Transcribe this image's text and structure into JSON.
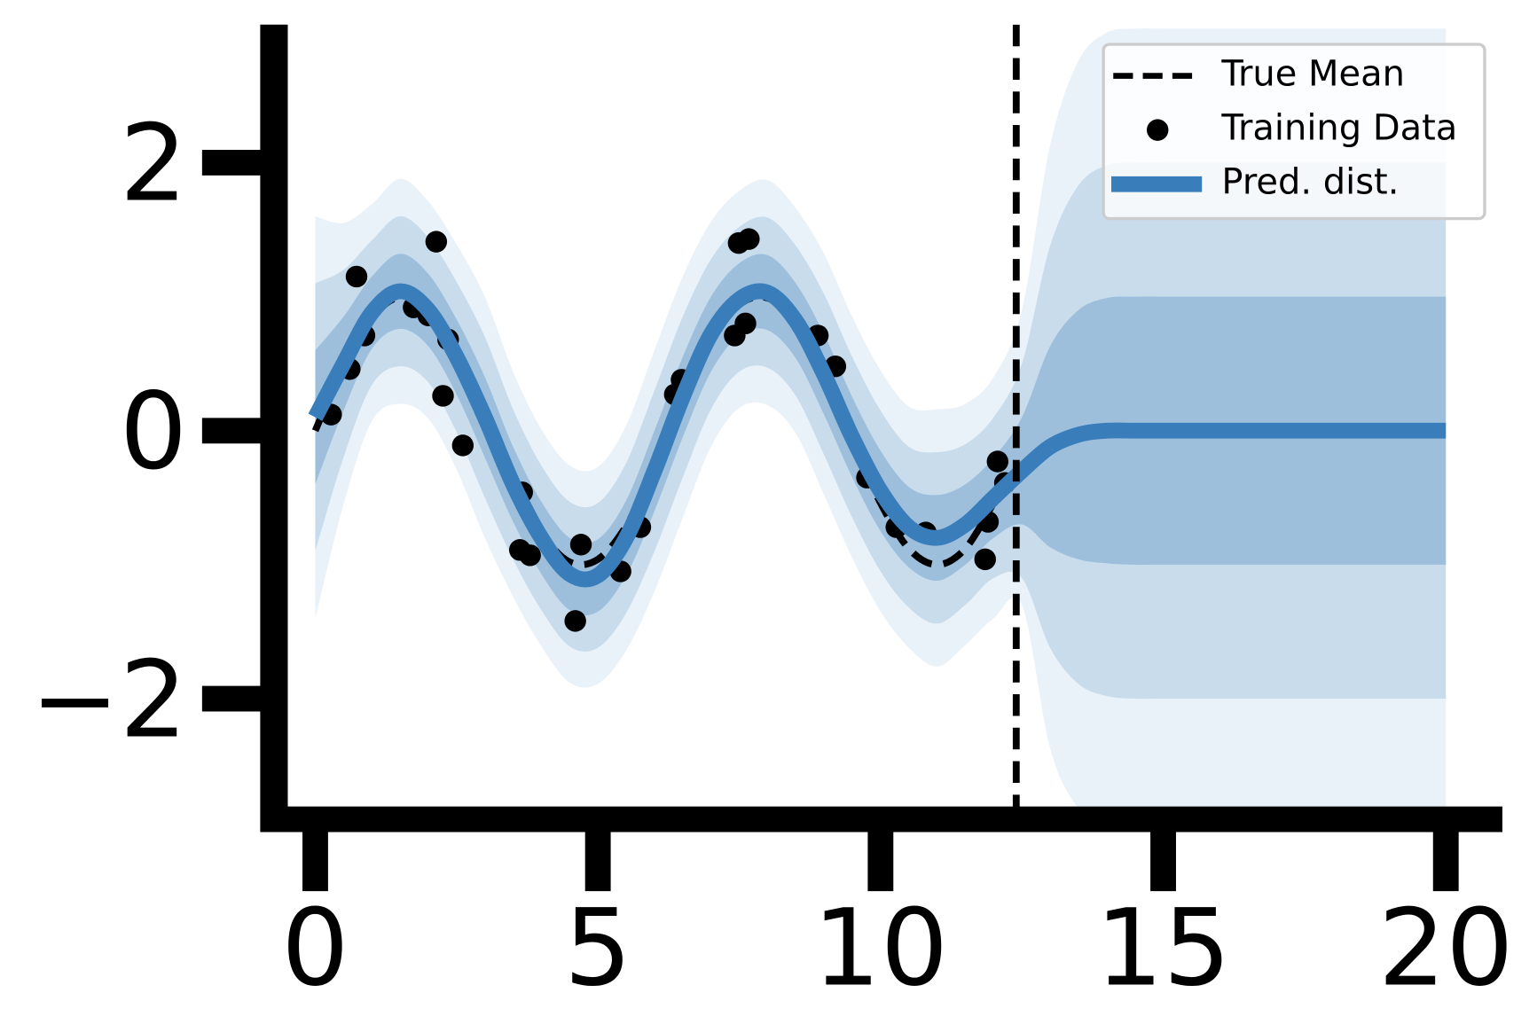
{
  "chart_data": {
    "type": "line",
    "xlim": [
      -0.73,
      21
    ],
    "ylim": [
      -2.9,
      3.03
    ],
    "xticks": [
      0,
      5,
      10,
      15,
      20
    ],
    "yticks": [
      {
        "value": -2,
        "label": "−2"
      },
      0,
      2
    ],
    "vline": 12.4,
    "legend": "upper right",
    "x": [
      0,
      0.5,
      1,
      1.5,
      2,
      2.5,
      3,
      3.5,
      4,
      4.5,
      5,
      5.5,
      6,
      6.5,
      7,
      7.5,
      8,
      8.5,
      9,
      9.5,
      10,
      10.5,
      11,
      11.5,
      12,
      12.5,
      13,
      13.5,
      14,
      14.5,
      15,
      15.5,
      16,
      16.5,
      17,
      17.5,
      18,
      18.5,
      19,
      19.5,
      20
    ],
    "series": [
      {
        "name": "Pred. dist.",
        "color": "#3a7dbb",
        "values": [
          0.1,
          0.5,
          0.88,
          1.04,
          0.9,
          0.55,
          0.1,
          -0.4,
          -0.8,
          -1.07,
          -1.08,
          -0.8,
          -0.3,
          0.25,
          0.72,
          0.98,
          1.03,
          0.82,
          0.42,
          -0.05,
          -0.45,
          -0.72,
          -0.8,
          -0.7,
          -0.5,
          -0.3,
          -0.12,
          -0.03,
          0,
          0,
          0,
          0,
          0,
          0,
          0,
          0,
          0,
          0,
          0,
          0,
          0
        ]
      }
    ],
    "bands": [
      {
        "color": "#eaf2f9",
        "upper": [
          1.6,
          1.55,
          1.69,
          1.88,
          1.71,
          1.39,
          1.0,
          0.44,
          0.01,
          -0.26,
          -0.27,
          0.04,
          0.6,
          1.15,
          1.56,
          1.79,
          1.87,
          1.66,
          1.32,
          0.85,
          0.45,
          0.18,
          0.16,
          0.2,
          0.4,
          0.9,
          2.13,
          2.76,
          2.97,
          3,
          3,
          3,
          3,
          3,
          3,
          3,
          3,
          3,
          3,
          3,
          3
        ],
        "lower": [
          -1.4,
          -0.55,
          0.07,
          0.2,
          0.09,
          -0.29,
          -0.8,
          -1.24,
          -1.61,
          -1.88,
          -1.89,
          -1.64,
          -1.2,
          -0.65,
          -0.12,
          0.17,
          0.19,
          -0.02,
          -0.48,
          -0.95,
          -1.35,
          -1.62,
          -1.76,
          -1.6,
          -1.4,
          -1.3,
          -2.37,
          -2.82,
          -2.97,
          -3,
          -3,
          -3,
          -3,
          -3,
          -3,
          -3,
          -3,
          -3,
          -3,
          -3,
          -3
        ]
      },
      {
        "color": "#c8dcec",
        "upper": [
          1.1,
          1.2,
          1.42,
          1.6,
          1.44,
          1.11,
          0.7,
          0.16,
          -0.26,
          -0.53,
          -0.54,
          -0.24,
          0.3,
          0.85,
          1.28,
          1.52,
          1.59,
          1.38,
          1.02,
          0.55,
          0.15,
          -0.12,
          -0.16,
          -0.1,
          0.1,
          0.5,
          1.38,
          1.83,
          1.98,
          2,
          2,
          2,
          2,
          2,
          2,
          2,
          2,
          2,
          2,
          2,
          2
        ],
        "lower": [
          -0.9,
          -0.2,
          0.34,
          0.48,
          0.36,
          -0.01,
          -0.5,
          -0.96,
          -1.34,
          -1.61,
          -1.62,
          -1.36,
          -0.9,
          -0.35,
          0.16,
          0.44,
          0.47,
          0.26,
          -0.18,
          -0.65,
          -1.05,
          -1.32,
          -1.44,
          -1.3,
          -1.1,
          -1.1,
          -1.62,
          -1.89,
          -1.98,
          -2,
          -2,
          -2,
          -2,
          -2,
          -2,
          -2,
          -2,
          -2,
          -2,
          -2,
          -2
        ]
      },
      {
        "color": "#9dbfdc",
        "upper": [
          0.6,
          0.85,
          1.15,
          1.32,
          1.17,
          0.83,
          0.4,
          -0.12,
          -0.53,
          -0.8,
          -0.81,
          -0.52,
          0,
          0.55,
          1.0,
          1.25,
          1.31,
          1.1,
          0.72,
          0.25,
          -0.15,
          -0.42,
          -0.48,
          -0.4,
          -0.2,
          0.1,
          0.63,
          0.9,
          0.99,
          1,
          1,
          1,
          1,
          1,
          1,
          1,
          1,
          1,
          1,
          1,
          1
        ],
        "lower": [
          -0.4,
          0.15,
          0.61,
          0.76,
          0.63,
          0.27,
          -0.2,
          -0.68,
          -1.07,
          -1.34,
          -1.35,
          -1.08,
          -0.6,
          -0.05,
          0.44,
          0.71,
          0.75,
          0.54,
          0.12,
          -0.35,
          -0.75,
          -1.02,
          -1.12,
          -1.0,
          -0.8,
          -0.7,
          -0.87,
          -0.96,
          -0.99,
          -1,
          -1,
          -1,
          -1,
          -1,
          -1,
          -1,
          -1,
          -1,
          -1,
          -1,
          -1
        ]
      }
    ],
    "true_mean": {
      "name": "True Mean",
      "color": "#000000",
      "x": [
        0,
        0.5,
        1,
        1.5,
        2,
        2.5,
        3,
        3.5,
        4,
        4.5,
        5,
        5.5,
        6,
        6.5,
        7,
        7.5,
        8,
        8.5,
        9,
        9.5,
        10,
        10.5,
        11,
        11.5,
        12
      ],
      "values": [
        0,
        0.48,
        0.84,
        1.0,
        0.91,
        0.6,
        0.14,
        -0.35,
        -0.76,
        -0.98,
        -0.96,
        -0.71,
        -0.28,
        0.22,
        0.66,
        0.94,
        0.99,
        0.8,
        0.41,
        -0.08,
        -0.54,
        -0.88,
        -1.0,
        -0.88,
        -0.54
      ]
    },
    "training": {
      "name": "Training Data",
      "color": "#000000",
      "x": [
        0.28,
        0.61,
        0.73,
        0.87,
        1.74,
        2.0,
        2.14,
        2.26,
        2.35,
        2.61,
        3.66,
        3.62,
        3.8,
        4.7,
        4.6,
        5.4,
        5.75,
        6.36,
        6.48,
        7.42,
        7.49,
        7.67,
        7.61,
        8.89,
        9.2,
        9.76,
        10.28,
        10.8,
        11.85,
        11.9,
        12.07,
        12.2
      ],
      "y": [
        0.12,
        0.46,
        1.15,
        0.71,
        0.92,
        0.86,
        1.41,
        0.26,
        0.68,
        -0.11,
        -0.46,
        -0.89,
        -0.93,
        -0.85,
        -1.42,
        -1.05,
        -0.72,
        0.27,
        0.38,
        0.71,
        1.4,
        1.43,
        0.8,
        0.71,
        0.48,
        -0.35,
        -0.72,
        -0.76,
        -0.96,
        -0.68,
        -0.23,
        -0.39
      ]
    }
  }
}
